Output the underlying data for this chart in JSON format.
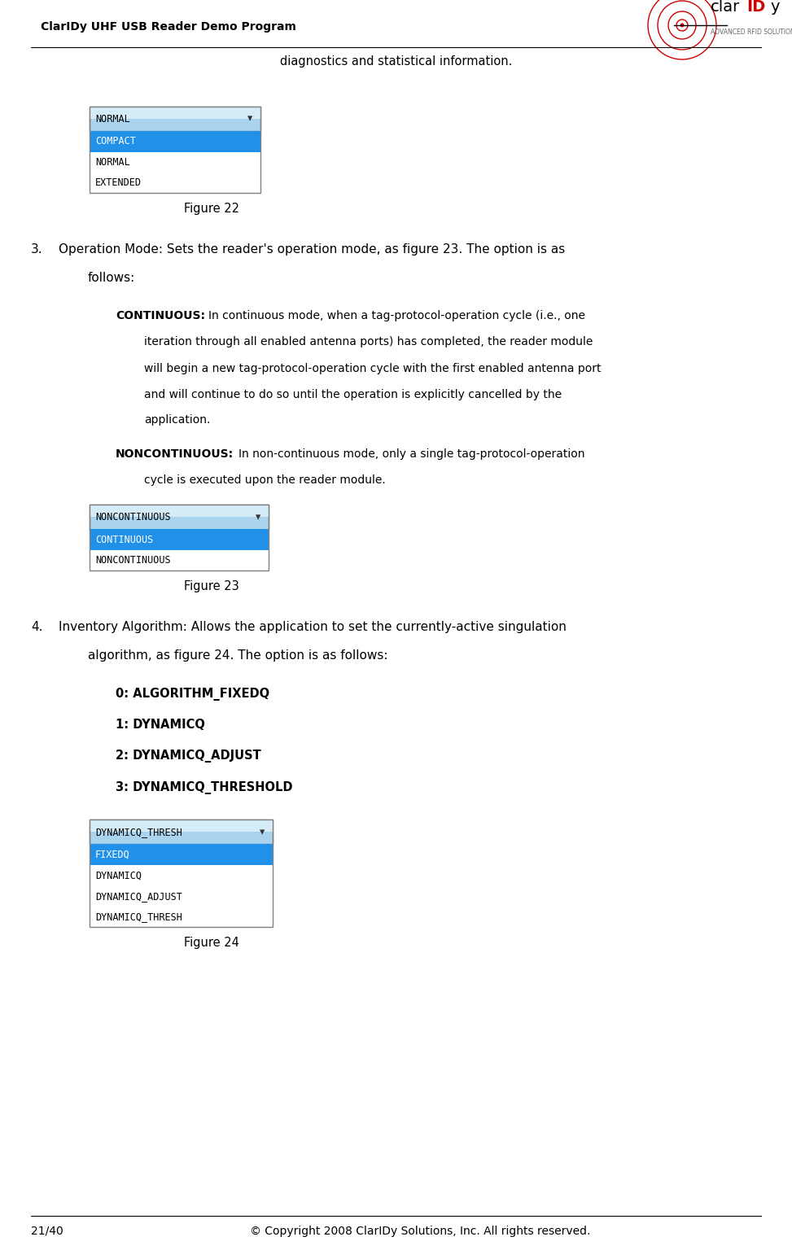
{
  "bg_color": "#ffffff",
  "page_width": 9.73,
  "page_height": 15.36,
  "dpi": 100,
  "header_title": "ClarIDy UHF USB Reader Demo Program",
  "header_subtitle": "diagnostics and statistical information.",
  "footer_left": "21/40",
  "footer_right": "© Copyright 2008 ClarIDy Solutions, Inc. All rights reserved.",
  "figure22_caption": "Figure 22",
  "figure23_caption": "Figure 23",
  "figure24_caption": "Figure 24",
  "fig22_dropdown_text": "NORMAL",
  "fig22_items": [
    "COMPACT",
    "NORMAL",
    "EXTENDED"
  ],
  "fig22_selected": 0,
  "fig23_dropdown_text": "NONCONTINUOUS",
  "fig23_items": [
    "CONTINUOUS",
    "NONCONTINUOUS"
  ],
  "fig23_selected": 0,
  "fig24_dropdown_text": "DYNAMICQ_THRESH",
  "fig24_items": [
    "FIXEDQ",
    "DYNAMICQ",
    "DYNAMICQ_ADJUST",
    "DYNAMICQ_THRESH"
  ],
  "fig24_selected": 0,
  "item4_options": [
    "0: ALGORITHM_FIXEDQ",
    "1: DYNAMICQ",
    "2: DYNAMICQ_ADJUST",
    "3: DYNAMICQ_THRESHOLD"
  ],
  "dropdown_border": "#808080",
  "dropdown_header_bg": "#b8d8f0",
  "dropdown_selected_bg": "#2090e8",
  "dropdown_text_color": "#000000",
  "dropdown_selected_text": "#ffffff",
  "dropdown_list_bg": "#ffffff",
  "line_color": "#000000",
  "text_color": "#000000"
}
